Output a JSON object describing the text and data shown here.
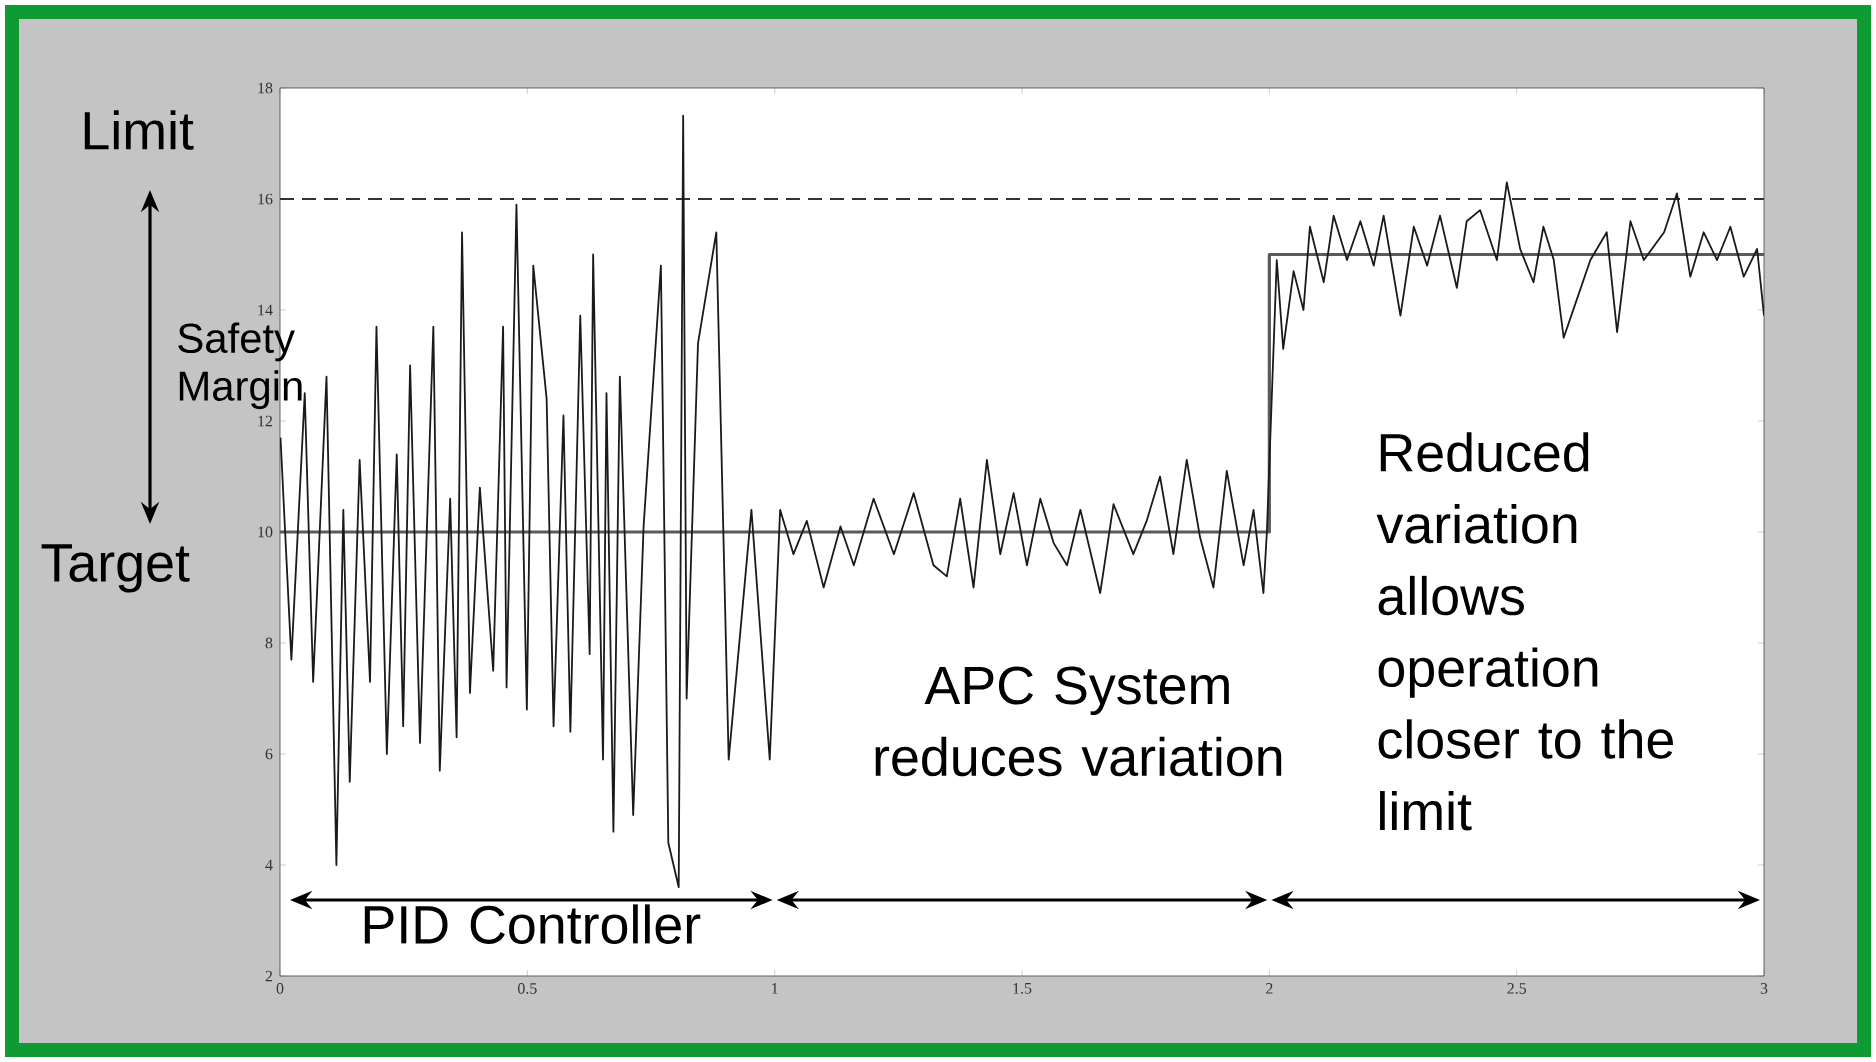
{
  "chart_data": {
    "type": "line",
    "xlim": [
      0,
      3
    ],
    "ylim": [
      2,
      18
    ],
    "xticks": [
      0,
      0.5,
      1,
      1.5,
      2,
      2.5,
      3
    ],
    "yticks": [
      2,
      4,
      6,
      8,
      10,
      12,
      14,
      16,
      18
    ],
    "series": [
      {
        "color": "#1a1a1a",
        "x": [
          0.001,
          0.023,
          0.05,
          0.067,
          0.094,
          0.114,
          0.128,
          0.141,
          0.161,
          0.182,
          0.195,
          0.216,
          0.236,
          0.249,
          0.263,
          0.283,
          0.31,
          0.323,
          0.344,
          0.357,
          0.368,
          0.384,
          0.404,
          0.431,
          0.451,
          0.458,
          0.478,
          0.499,
          0.512,
          0.539,
          0.553,
          0.573,
          0.587,
          0.607,
          0.626,
          0.633,
          0.653,
          0.66,
          0.674,
          0.687,
          0.714,
          0.735,
          0.77,
          0.785,
          0.806,
          0.815,
          0.822,
          0.845,
          0.882,
          0.907,
          0.953,
          0.99,
          1.011,
          1.038,
          1.065,
          1.099,
          1.133,
          1.16,
          1.2,
          1.241,
          1.281,
          1.321,
          1.348,
          1.375,
          1.402,
          1.429,
          1.456,
          1.483,
          1.51,
          1.537,
          1.564,
          1.591,
          1.618,
          1.658,
          1.685,
          1.725,
          1.752,
          1.779,
          1.806,
          1.833,
          1.86,
          1.887,
          1.914,
          1.948,
          1.968,
          1.988,
          1.995,
          2.015,
          2.028,
          2.049,
          2.069,
          2.082,
          2.11,
          2.13,
          2.157,
          2.184,
          2.211,
          2.231,
          2.265,
          2.292,
          2.319,
          2.345,
          2.379,
          2.399,
          2.426,
          2.46,
          2.48,
          2.507,
          2.534,
          2.554,
          2.575,
          2.595,
          2.622,
          2.649,
          2.682,
          2.703,
          2.73,
          2.757,
          2.798,
          2.824,
          2.851,
          2.878,
          2.905,
          2.932,
          2.959,
          2.986,
          3.0
        ],
        "values": [
          11.7,
          7.7,
          12.5,
          7.3,
          12.8,
          4.0,
          10.4,
          5.5,
          11.3,
          7.3,
          13.7,
          6.0,
          11.4,
          6.5,
          13.0,
          6.2,
          13.7,
          5.7,
          10.6,
          6.3,
          15.4,
          7.1,
          10.8,
          7.5,
          13.7,
          7.2,
          15.9,
          6.8,
          14.8,
          12.4,
          6.5,
          12.1,
          6.4,
          13.9,
          7.8,
          15.0,
          5.9,
          12.5,
          4.6,
          12.8,
          4.9,
          10.1,
          14.8,
          4.4,
          3.6,
          17.5,
          7.0,
          13.4,
          15.4,
          5.9,
          10.4,
          5.9,
          10.4,
          9.6,
          10.2,
          9.0,
          10.1,
          9.4,
          10.6,
          9.6,
          10.7,
          9.4,
          9.2,
          10.6,
          9.0,
          11.3,
          9.6,
          10.7,
          9.4,
          10.6,
          9.8,
          9.4,
          10.4,
          8.9,
          10.5,
          9.6,
          10.2,
          11.0,
          9.6,
          11.3,
          9.9,
          9.0,
          11.1,
          9.4,
          10.4,
          8.9,
          10.0,
          14.9,
          13.3,
          14.7,
          14.0,
          15.5,
          14.5,
          15.7,
          14.9,
          15.6,
          14.8,
          15.7,
          13.9,
          15.5,
          14.8,
          15.7,
          14.4,
          15.6,
          15.8,
          14.9,
          16.3,
          15.1,
          14.5,
          15.5,
          14.9,
          13.5,
          14.2,
          14.9,
          15.4,
          13.6,
          15.6,
          14.9,
          15.4,
          16.1,
          14.6,
          15.4,
          14.9,
          15.5,
          14.6,
          15.1,
          13.9
        ]
      },
      {
        "color": "#5a5a5a",
        "x": [
          0,
          2,
          2,
          3
        ],
        "values": [
          10,
          10,
          15,
          15
        ]
      }
    ],
    "ref_lines": [
      {
        "axis": "y",
        "value": 16,
        "color": "#333333",
        "line_style": "dashed"
      }
    ],
    "annotations": [
      "Limit",
      "Safety Margin",
      "Target",
      "PID Controller",
      "APC System reduces variation",
      "Reduced variation allows operation closer to the limit"
    ]
  }
}
